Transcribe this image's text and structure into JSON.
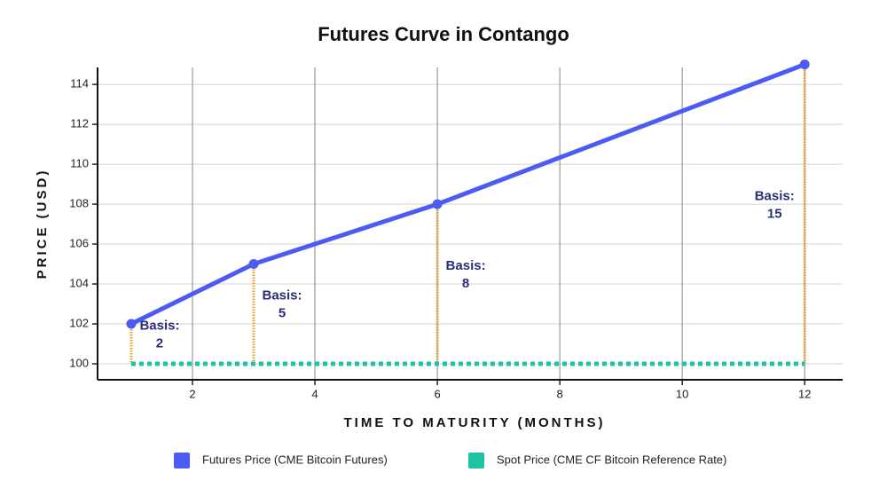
{
  "chart_data": {
    "type": "line",
    "title": "Futures Curve in Contango",
    "x_label": "TIME TO MATURITY (MONTHS)",
    "y_label": "PRICE (USD)",
    "series": [
      {
        "name": "Futures Price (CME Bitcoin Futures)",
        "color": "#4c5cf2",
        "x": [
          1,
          3,
          6,
          12
        ],
        "values": [
          102,
          105,
          108,
          115
        ]
      },
      {
        "name": "Spot Price (CME CF Bitcoin Reference Rate)",
        "color": "#1fc2a2",
        "x": [
          1,
          12
        ],
        "values": [
          100,
          100
        ]
      }
    ],
    "annotations": [
      {
        "label": "Basis:",
        "value": 2
      },
      {
        "label": "Basis:",
        "value": 5
      },
      {
        "label": "Basis:",
        "value": 8
      },
      {
        "label": "Basis:",
        "value": 15
      }
    ],
    "basis_color": "#f0a034",
    "xlim": [
      0.45,
      12.62
    ],
    "xticks": [
      2,
      4,
      6,
      8,
      10,
      12
    ],
    "ylim": [
      99.2,
      114.85
    ],
    "yticks": [
      100,
      102,
      104,
      106,
      108,
      110,
      112,
      114
    ],
    "grid": true
  }
}
